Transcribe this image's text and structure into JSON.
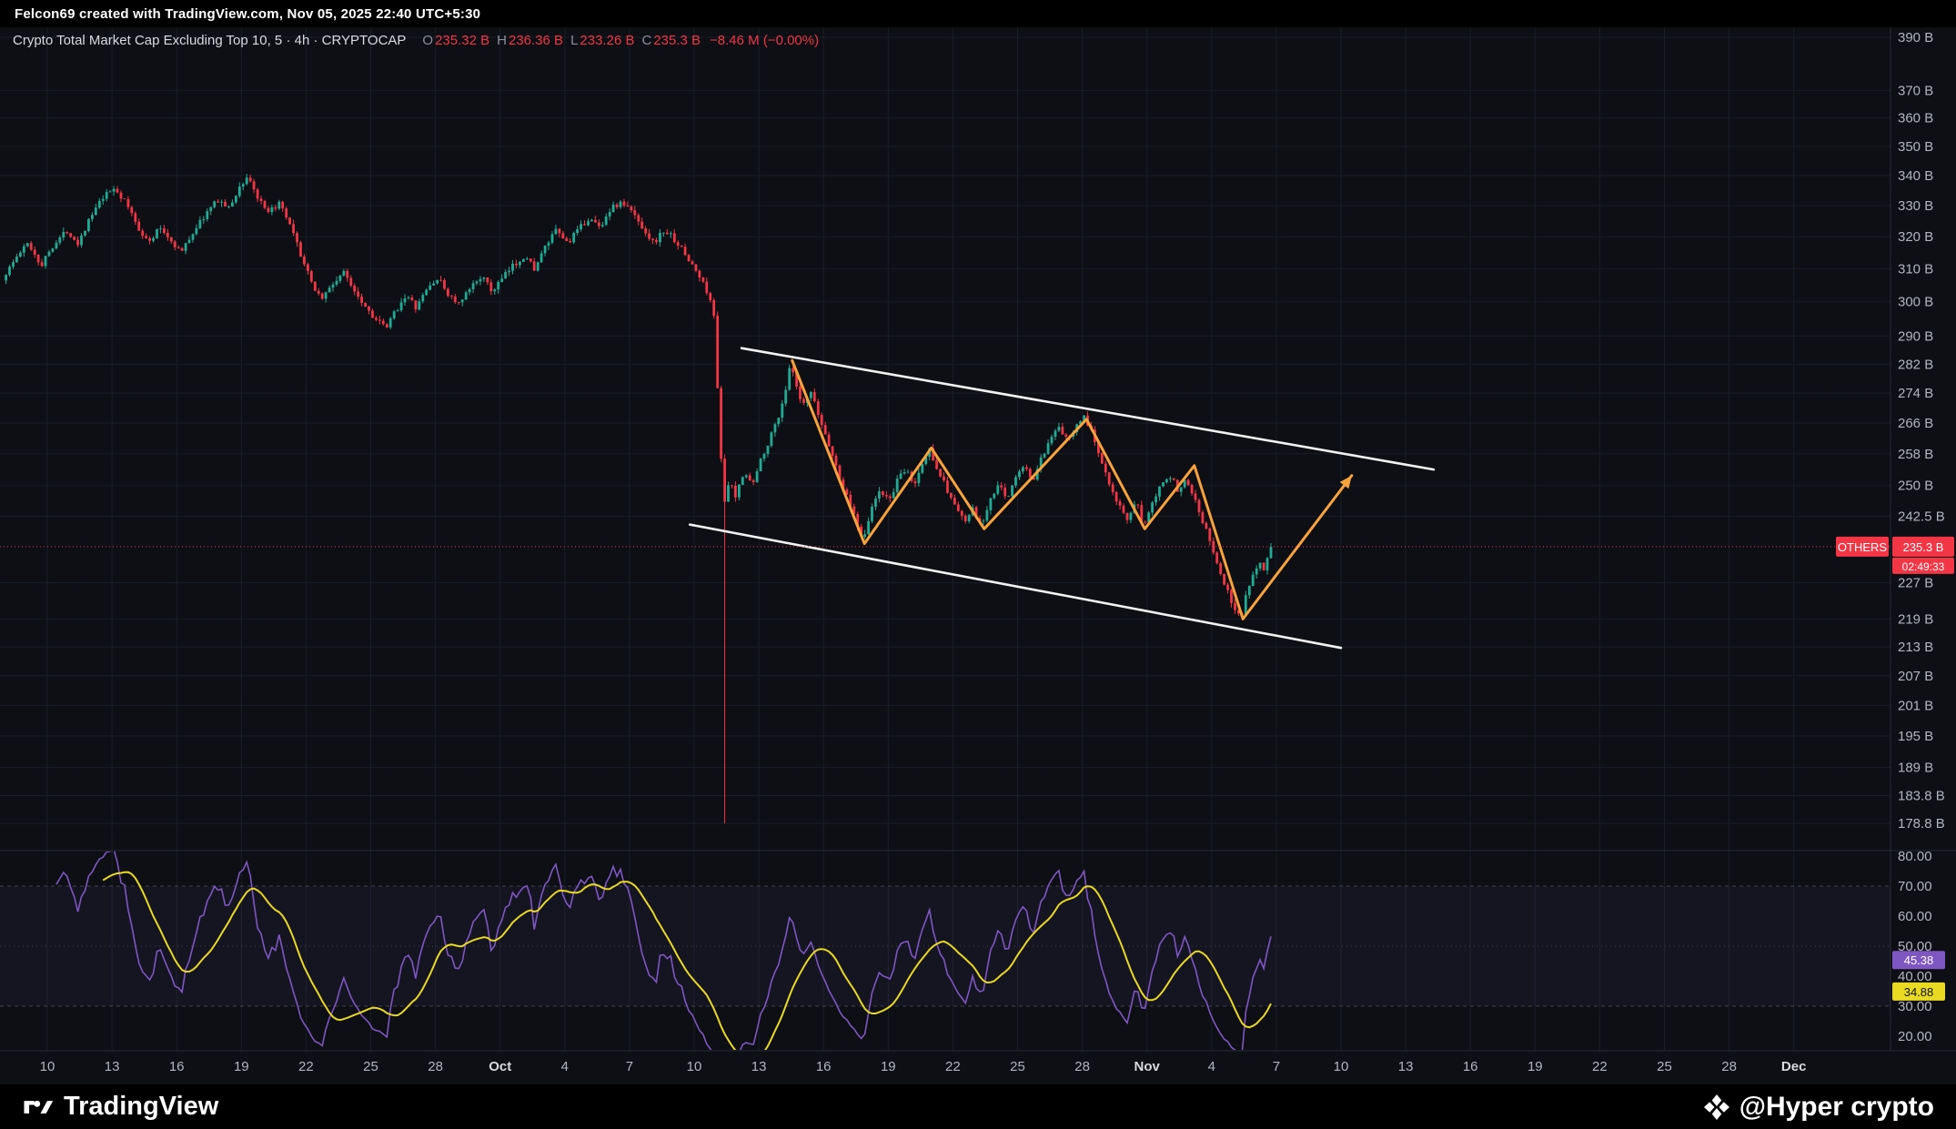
{
  "topbar": {
    "text": "Felcon69 created with TradingView.com, Nov 05, 2025 22:40 UTC+5:30"
  },
  "legend": {
    "title": "Crypto Total Market Cap Excluding Top 10, 5 · 4h · CRYPTOCAP",
    "items": [
      {
        "k": "O",
        "v": "235.32 B"
      },
      {
        "k": "H",
        "v": "236.36 B"
      },
      {
        "k": "L",
        "v": "233.26 B"
      },
      {
        "k": "C",
        "v": "235.3 B"
      }
    ],
    "change": "−8.46 M (−0.00%)"
  },
  "price_axis": {
    "symbol_label": "OTHERS",
    "last_price_label": "235.3 B",
    "countdown": "02:49:33",
    "ticks": [
      {
        "label": "390 B",
        "v": 390
      },
      {
        "label": "370 B",
        "v": 370
      },
      {
        "label": "360 B",
        "v": 360
      },
      {
        "label": "350 B",
        "v": 350
      },
      {
        "label": "340 B",
        "v": 340
      },
      {
        "label": "330 B",
        "v": 330
      },
      {
        "label": "320 B",
        "v": 320
      },
      {
        "label": "310 B",
        "v": 310
      },
      {
        "label": "300 B",
        "v": 300
      },
      {
        "label": "290 B",
        "v": 290
      },
      {
        "label": "282 B",
        "v": 282
      },
      {
        "label": "274 B",
        "v": 274
      },
      {
        "label": "266 B",
        "v": 266
      },
      {
        "label": "258 B",
        "v": 258
      },
      {
        "label": "250 B",
        "v": 250
      },
      {
        "label": "242.5 B",
        "v": 242.5
      },
      {
        "label": "227 B",
        "v": 227
      },
      {
        "label": "219 B",
        "v": 219
      },
      {
        "label": "213 B",
        "v": 213
      },
      {
        "label": "207 B",
        "v": 207
      },
      {
        "label": "201 B",
        "v": 201
      },
      {
        "label": "195 B",
        "v": 195
      },
      {
        "label": "189 B",
        "v": 189
      },
      {
        "label": "183.8 B",
        "v": 183.8
      },
      {
        "label": "178.8 B",
        "v": 178.8
      }
    ]
  },
  "rsi_axis": {
    "rsi_value": "45.38",
    "ma_value": "34.88",
    "ticks": [
      {
        "label": "80.00",
        "v": 80
      },
      {
        "label": "70.00",
        "v": 70
      },
      {
        "label": "60.00",
        "v": 60
      },
      {
        "label": "50.00",
        "v": 50
      },
      {
        "label": "40.00",
        "v": 40
      },
      {
        "label": "30.00",
        "v": 30
      },
      {
        "label": "20.00",
        "v": 20
      }
    ]
  },
  "time_axis": {
    "labels": [
      {
        "d": 2,
        "t": "10"
      },
      {
        "d": 5,
        "t": "13"
      },
      {
        "d": 8,
        "t": "16"
      },
      {
        "d": 11,
        "t": "19"
      },
      {
        "d": 14,
        "t": "22"
      },
      {
        "d": 17,
        "t": "25"
      },
      {
        "d": 20,
        "t": "28"
      },
      {
        "d": 23,
        "t": "Oct",
        "m": true
      },
      {
        "d": 26,
        "t": "4"
      },
      {
        "d": 29,
        "t": "7"
      },
      {
        "d": 32,
        "t": "10"
      },
      {
        "d": 35,
        "t": "13"
      },
      {
        "d": 38,
        "t": "16"
      },
      {
        "d": 41,
        "t": "19"
      },
      {
        "d": 44,
        "t": "22"
      },
      {
        "d": 47,
        "t": "25"
      },
      {
        "d": 50,
        "t": "28"
      },
      {
        "d": 53,
        "t": "Nov",
        "m": true
      },
      {
        "d": 56,
        "t": "4"
      },
      {
        "d": 59,
        "t": "7"
      },
      {
        "d": 62,
        "t": "10"
      },
      {
        "d": 65,
        "t": "13"
      },
      {
        "d": 68,
        "t": "16"
      },
      {
        "d": 71,
        "t": "19"
      },
      {
        "d": 74,
        "t": "22"
      },
      {
        "d": 77,
        "t": "25"
      },
      {
        "d": 80,
        "t": "28"
      },
      {
        "d": 83,
        "t": "Dec",
        "m": true
      }
    ]
  },
  "footer": {
    "brand": "TradingView",
    "credit": "@Hyper crypto"
  },
  "colors": {
    "bg": "#0d0f14",
    "grid": "#181d26",
    "border": "#262b36",
    "axis_text": "#b2b5be",
    "month_text": "#d8dae0",
    "up": "#22ab94",
    "down": "#f23645",
    "channel": "#ffffff",
    "drawing_orange": "#f7a23b",
    "rsi_line": "#7e57c2",
    "rsi_ma": "#e8d922",
    "rsi_band": "rgba(126,87,194,0.08)",
    "guide": "#787b86"
  },
  "chart_data": {
    "type": "candlestick",
    "title": "Crypto Total Market Cap Excluding Top 10 (OTHERS)",
    "interval": "4h",
    "scale": "log",
    "y_axis_range": [
      178.8,
      390
    ],
    "ohlc_current": {
      "o": 235.32,
      "h": 236.36,
      "l": 233.26,
      "c": 235.3
    },
    "change": {
      "abs": -8460000,
      "pct": -0.0
    },
    "end_day": 58.8,
    "crash": {
      "day": 33.4,
      "low": 178.8
    },
    "price_anchors": [
      [
        0,
        307
      ],
      [
        0.7,
        314
      ],
      [
        1.2,
        318
      ],
      [
        1.8,
        311
      ],
      [
        2.3,
        317
      ],
      [
        3,
        322
      ],
      [
        3.5,
        318
      ],
      [
        4,
        325
      ],
      [
        4.6,
        332
      ],
      [
        5.2,
        336
      ],
      [
        5.8,
        330
      ],
      [
        6.3,
        323
      ],
      [
        6.8,
        318
      ],
      [
        7.3,
        323
      ],
      [
        7.8,
        319
      ],
      [
        8.3,
        315
      ],
      [
        8.8,
        321
      ],
      [
        9.4,
        327
      ],
      [
        10,
        332
      ],
      [
        10.5,
        329
      ],
      [
        11,
        336
      ],
      [
        11.4,
        340
      ],
      [
        11.8,
        333
      ],
      [
        12.3,
        327
      ],
      [
        12.8,
        331
      ],
      [
        13.3,
        324
      ],
      [
        13.8,
        315
      ],
      [
        14.3,
        306
      ],
      [
        14.8,
        301
      ],
      [
        15.3,
        305
      ],
      [
        15.8,
        309
      ],
      [
        16.3,
        304
      ],
      [
        16.8,
        299
      ],
      [
        17.3,
        295
      ],
      [
        17.8,
        292
      ],
      [
        18.2,
        297
      ],
      [
        18.7,
        302
      ],
      [
        19.2,
        298
      ],
      [
        19.7,
        304
      ],
      [
        20.2,
        307
      ],
      [
        20.7,
        302
      ],
      [
        21.2,
        299
      ],
      [
        21.7,
        304
      ],
      [
        22.2,
        308
      ],
      [
        22.7,
        303
      ],
      [
        23.2,
        307
      ],
      [
        23.7,
        311
      ],
      [
        24.2,
        314
      ],
      [
        24.7,
        310
      ],
      [
        25.2,
        317
      ],
      [
        25.7,
        322
      ],
      [
        26.2,
        318
      ],
      [
        26.7,
        322
      ],
      [
        27.2,
        326
      ],
      [
        27.7,
        323
      ],
      [
        28.2,
        329
      ],
      [
        28.7,
        331
      ],
      [
        29.2,
        328
      ],
      [
        29.7,
        323
      ],
      [
        30.2,
        318
      ],
      [
        30.7,
        322
      ],
      [
        31.2,
        319
      ],
      [
        31.7,
        314
      ],
      [
        32.2,
        309
      ],
      [
        32.7,
        303
      ],
      [
        33,
        296
      ],
      [
        33.2,
        272
      ],
      [
        33.45,
        244
      ],
      [
        33.7,
        251
      ],
      [
        34,
        247
      ],
      [
        34.4,
        254
      ],
      [
        34.8,
        250
      ],
      [
        35.2,
        257
      ],
      [
        35.6,
        262
      ],
      [
        36,
        268
      ],
      [
        36.3,
        274
      ],
      [
        36.55,
        282
      ],
      [
        36.8,
        276
      ],
      [
        37.1,
        270
      ],
      [
        37.5,
        274
      ],
      [
        37.9,
        267
      ],
      [
        38.3,
        261
      ],
      [
        38.7,
        254
      ],
      [
        39.1,
        248
      ],
      [
        39.5,
        243
      ],
      [
        39.9,
        237
      ],
      [
        40.3,
        244
      ],
      [
        40.7,
        249
      ],
      [
        41.1,
        246
      ],
      [
        41.5,
        251
      ],
      [
        41.9,
        254
      ],
      [
        42.3,
        250
      ],
      [
        42.7,
        256
      ],
      [
        43,
        259
      ],
      [
        43.4,
        254
      ],
      [
        43.8,
        249
      ],
      [
        44.2,
        245
      ],
      [
        44.6,
        241
      ],
      [
        45,
        244
      ],
      [
        45.4,
        240
      ],
      [
        45.8,
        246
      ],
      [
        46.2,
        250
      ],
      [
        46.6,
        247
      ],
      [
        47,
        252
      ],
      [
        47.4,
        255
      ],
      [
        47.8,
        251
      ],
      [
        48.2,
        257
      ],
      [
        48.6,
        261
      ],
      [
        49,
        265
      ],
      [
        49.4,
        261
      ],
      [
        49.8,
        266
      ],
      [
        50.2,
        268
      ],
      [
        50.6,
        262
      ],
      [
        51,
        256
      ],
      [
        51.4,
        250
      ],
      [
        51.8,
        245
      ],
      [
        52.2,
        241
      ],
      [
        52.6,
        246
      ],
      [
        52.9,
        240
      ],
      [
        53.3,
        246
      ],
      [
        53.7,
        250
      ],
      [
        54.1,
        253
      ],
      [
        54.5,
        249
      ],
      [
        54.9,
        252
      ],
      [
        55.3,
        247
      ],
      [
        55.7,
        241
      ],
      [
        56.1,
        235
      ],
      [
        56.5,
        229
      ],
      [
        56.9,
        224
      ],
      [
        57.2,
        221
      ],
      [
        57.45,
        219
      ],
      [
        57.7,
        225
      ],
      [
        58,
        229
      ],
      [
        58.3,
        232
      ],
      [
        58.55,
        230
      ],
      [
        58.8,
        235.3
      ]
    ],
    "rsi": {
      "period": 14,
      "ma_period": 14,
      "current": 45.38,
      "ma_current": 34.88,
      "overbought": 70,
      "mid": 50,
      "oversold": 30
    },
    "drawings": {
      "channel_upper": [
        [
          34.2,
          286.5
        ],
        [
          66.3,
          254
        ]
      ],
      "channel_lower": [
        [
          31.8,
          240.5
        ],
        [
          62.0,
          212.8
        ]
      ],
      "zigzag": [
        [
          36.55,
          283
        ],
        [
          39.9,
          236
        ],
        [
          43.0,
          259.5
        ],
        [
          45.45,
          239.5
        ],
        [
          50.2,
          267
        ],
        [
          52.9,
          239.5
        ],
        [
          55.2,
          255
        ],
        [
          57.45,
          219
        ]
      ],
      "arrow_end": [
        62.5,
        252.5
      ],
      "price_line": 235.3
    }
  }
}
